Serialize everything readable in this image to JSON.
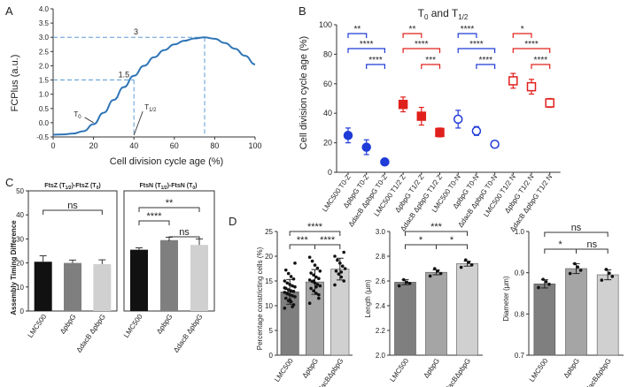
{
  "figure": {
    "panel_labels": [
      "A",
      "B",
      "C",
      "D"
    ]
  },
  "colors": {
    "curve": "#2e75b6",
    "guide": "#5b9bd5",
    "blue": "#1f3bd8",
    "red": "#e0201c",
    "dark_bar": "#7f7f7f",
    "mid_bar": "#a5a5a5",
    "light_bar": "#d0d0d0",
    "black_bar": "#111111"
  },
  "chart_data": [
    {
      "id": "A",
      "type": "line",
      "title": "",
      "xlabel": "Cell division cycle age (%)",
      "ylabel": "FCPlus (a.u.)",
      "xlim": [
        0,
        100
      ],
      "ylim": [
        -0.5,
        4
      ],
      "xticks": [
        "0",
        "20",
        "40",
        "60",
        "80",
        "100"
      ],
      "yticks": [
        "-0.5",
        "0.0",
        "0.5",
        "1.0",
        "1.5",
        "2.0",
        "2.5",
        "3.0",
        "3.5",
        "4.0"
      ],
      "series": [
        {
          "name": "FCPlus",
          "x": [
            0,
            5,
            10,
            15,
            20,
            25,
            30,
            35,
            40,
            45,
            50,
            55,
            60,
            65,
            70,
            75,
            80,
            85,
            90,
            95,
            100
          ],
          "y": [
            -0.42,
            -0.41,
            -0.38,
            -0.3,
            -0.05,
            0.35,
            0.8,
            1.25,
            1.65,
            2.0,
            2.3,
            2.55,
            2.75,
            2.88,
            2.96,
            3.0,
            2.95,
            2.8,
            2.6,
            2.35,
            2.05
          ]
        }
      ],
      "guides": [
        {
          "label": "3",
          "y": 3,
          "x_end": 75
        },
        {
          "label": "1.5",
          "y": 1.5,
          "x_end": 40
        }
      ],
      "annotations": [
        {
          "label": "T0",
          "main": "T",
          "sub": "0",
          "x": 20
        },
        {
          "label": "T1/2",
          "main": "T",
          "sub": "1/2",
          "x": 40
        }
      ]
    },
    {
      "id": "B",
      "type": "scatter",
      "title": "T0 and T1/2",
      "title_main": "T",
      "title_sub0": "0",
      "title_mid": " and T",
      "title_sub1": "1/2",
      "xlabel": "",
      "ylabel": "Cell division cycle age (%)",
      "ylim": [
        0,
        100
      ],
      "yticks": [
        "0",
        "20",
        "40",
        "60",
        "80",
        "100"
      ],
      "categories": [
        "LMC500 T0-Z",
        "ΔpbpG T0-Z",
        "ΔdacB ΔpbpG T0-Z",
        "LMC500 T1/2 Z",
        "ΔpbpG T1/2 Z",
        "ΔdacB ΔpbpG T1/2 Z",
        "LMC500 T0-N",
        "ΔpbpG T0-N",
        "ΔdacB ΔpbpG T0-N",
        "LMC500 T1/2 N",
        "ΔpbpG T1/2 N",
        "ΔdacB ΔpbpG T1/2 N"
      ],
      "values": [
        25,
        17,
        7,
        46,
        38,
        27,
        36,
        28,
        19,
        62,
        58,
        47
      ],
      "errors": [
        5,
        5,
        2,
        5,
        6,
        3,
        6,
        3,
        2,
        5,
        5,
        3
      ],
      "marker_colors": [
        "blue",
        "blue",
        "blue",
        "red",
        "red",
        "red",
        "blue",
        "blue",
        "blue",
        "red",
        "red",
        "red"
      ],
      "marker_shapes": [
        "circle",
        "circle",
        "circle",
        "square",
        "square",
        "square",
        "circle-open",
        "circle-open",
        "circle-open",
        "square-open",
        "square-open",
        "square-open"
      ],
      "significance": [
        {
          "from": 0,
          "to": 1,
          "label": "**",
          "color": "blue"
        },
        {
          "from": 0,
          "to": 2,
          "label": "****",
          "color": "blue"
        },
        {
          "from": 1,
          "to": 2,
          "label": "****",
          "color": "blue"
        },
        {
          "from": 3,
          "to": 4,
          "label": "**",
          "color": "red"
        },
        {
          "from": 3,
          "to": 5,
          "label": "****",
          "color": "red"
        },
        {
          "from": 4,
          "to": 5,
          "label": "***",
          "color": "red"
        },
        {
          "from": 6,
          "to": 7,
          "label": "****",
          "color": "blue"
        },
        {
          "from": 6,
          "to": 8,
          "label": "****",
          "color": "blue"
        },
        {
          "from": 7,
          "to": 8,
          "label": "****",
          "color": "blue"
        },
        {
          "from": 9,
          "to": 10,
          "label": "*",
          "color": "red"
        },
        {
          "from": 9,
          "to": 11,
          "label": "****",
          "color": "red"
        },
        {
          "from": 10,
          "to": 11,
          "label": "****",
          "color": "red"
        }
      ]
    },
    {
      "id": "C",
      "type": "bar",
      "ylabel": "Assembly Timing Difference",
      "ylim": [
        0,
        50
      ],
      "yticks": [
        "0",
        "10",
        "20",
        "30",
        "40",
        "50"
      ],
      "panels": [
        {
          "title": "FtsZ (T1/2)-FtsZ (T0)",
          "title_parts": [
            "FtsZ (T",
            "1/2",
            ")-FtsZ (T",
            "0",
            ")"
          ],
          "categories": [
            "LMC500",
            "ΔpbpG",
            "ΔdacB ΔpbpG"
          ],
          "values": [
            20.5,
            20,
            19.5
          ],
          "errors": [
            2.5,
            1.2,
            1.8
          ],
          "colors": [
            "black_bar",
            "dark_bar",
            "light_bar"
          ],
          "significance": [
            {
              "from": 0,
              "to": 2,
              "label": "ns"
            }
          ]
        },
        {
          "title": "FtsN (T1/2)-FtsN (T0)",
          "title_parts": [
            "FtsN (T",
            "1/2",
            ")-FtsN (T",
            "0",
            ")"
          ],
          "categories": [
            "LMC500",
            "ΔpbpG",
            "ΔdacB ΔpbpG"
          ],
          "values": [
            25.5,
            29.5,
            27.5
          ],
          "errors": [
            0.8,
            1.2,
            2.5
          ],
          "colors": [
            "black_bar",
            "dark_bar",
            "light_bar"
          ],
          "significance": [
            {
              "from": 0,
              "to": 1,
              "label": "****"
            },
            {
              "from": 0,
              "to": 2,
              "label": "**"
            },
            {
              "from": 1,
              "to": 2,
              "label": "ns"
            }
          ]
        }
      ]
    },
    {
      "id": "D1",
      "type": "bar",
      "ylabel": "Percentage constricting cells (%)",
      "ylim": [
        0,
        25
      ],
      "yticks": [
        "0",
        "5",
        "10",
        "15",
        "20",
        "25"
      ],
      "categories": [
        "LMC500",
        "ΔpbpG",
        "ΔdacBΔpbpG"
      ],
      "values": [
        12.8,
        14.8,
        17.4
      ],
      "errors": [
        2.5,
        2.5,
        2.2
      ],
      "colors": [
        "dark_bar",
        "mid_bar",
        "light_bar"
      ],
      "points": [
        [
          9.5,
          10.2,
          10.8,
          11,
          11.5,
          11.8,
          12,
          12.2,
          12.5,
          12.7,
          12.9,
          13,
          13.2,
          13.5,
          13.8,
          14,
          14.3,
          14.6,
          15,
          15.4,
          15.9,
          16.5,
          17.2,
          18.6,
          9.8,
          11.2,
          12.4,
          13.6
        ],
        [
          10.5,
          11.5,
          12.5,
          13,
          13.5,
          14,
          14.3,
          14.6,
          14.9,
          15.2,
          15.5,
          15.8,
          16.2,
          16.6,
          17,
          17.6,
          18.2,
          19,
          19.8,
          12.2,
          13.8,
          15
        ],
        [
          14.2,
          15,
          15.8,
          16.4,
          17,
          17.5,
          18,
          18.6,
          19.2,
          20,
          20.8,
          16.8
        ]
      ],
      "significance": [
        {
          "from": 0,
          "to": 1,
          "label": "***"
        },
        {
          "from": 0,
          "to": 2,
          "label": "****"
        },
        {
          "from": 1,
          "to": 2,
          "label": "****"
        }
      ]
    },
    {
      "id": "D2",
      "type": "bar",
      "ylabel": "Length (µm)",
      "ylim": [
        2.0,
        3.0
      ],
      "yticks": [
        "2.0",
        "2.2",
        "2.4",
        "2.6",
        "2.8",
        "3.0"
      ],
      "categories": [
        "LMC500",
        "ΔpbpG",
        "ΔdacBΔpbpG"
      ],
      "values": [
        2.59,
        2.67,
        2.74
      ],
      "errors": [
        0.02,
        0.02,
        0.02
      ],
      "colors": [
        "dark_bar",
        "mid_bar",
        "light_bar"
      ],
      "points": [
        [
          2.56,
          2.58,
          2.59,
          2.61
        ],
        [
          2.64,
          2.66,
          2.68,
          2.7
        ],
        [
          2.71,
          2.73,
          2.75,
          2.77
        ]
      ],
      "significance": [
        {
          "from": 0,
          "to": 1,
          "label": "*"
        },
        {
          "from": 0,
          "to": 2,
          "label": "***"
        },
        {
          "from": 1,
          "to": 2,
          "label": "*"
        }
      ]
    },
    {
      "id": "D3",
      "type": "bar",
      "ylabel": "Diameter (µm)",
      "ylim": [
        0.7,
        1.0
      ],
      "yticks": [
        "0.7",
        "0.8",
        "0.9",
        "1.0"
      ],
      "categories": [
        "LMC500",
        "ΔpbpG",
        "ΔdacBΔpbpG"
      ],
      "values": [
        0.873,
        0.91,
        0.895
      ],
      "errors": [
        0.01,
        0.012,
        0.012
      ],
      "colors": [
        "dark_bar",
        "mid_bar",
        "light_bar"
      ],
      "points": [
        [
          0.864,
          0.872,
          0.878,
          0.884
        ],
        [
          0.898,
          0.906,
          0.914,
          0.922
        ],
        [
          0.882,
          0.891,
          0.899,
          0.908
        ]
      ],
      "significance": [
        {
          "from": 0,
          "to": 1,
          "label": "*"
        },
        {
          "from": 0,
          "to": 2,
          "label": "ns"
        },
        {
          "from": 1,
          "to": 2,
          "label": "ns"
        }
      ]
    }
  ]
}
